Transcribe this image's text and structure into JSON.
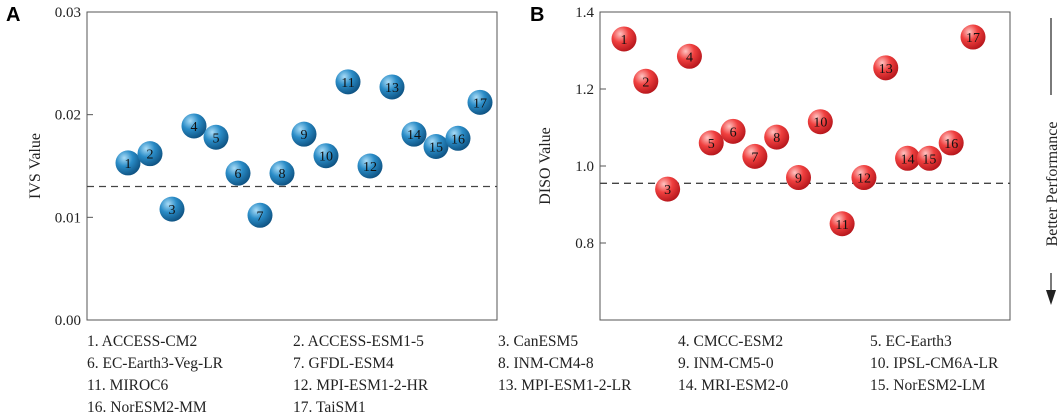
{
  "chart_data": [
    {
      "panel": "A",
      "type": "scatter",
      "ylabel": "IVS Value",
      "ylim": [
        0,
        0.03
      ],
      "yticks": [
        "0.00",
        "0.01",
        "0.02",
        "0.03"
      ],
      "reference_line": 0.013,
      "points": [
        {
          "label": "1",
          "x": 1,
          "y": 0.0153
        },
        {
          "label": "2",
          "x": 2,
          "y": 0.0162
        },
        {
          "label": "3",
          "x": 3,
          "y": 0.0108
        },
        {
          "label": "4",
          "x": 4,
          "y": 0.0189
        },
        {
          "label": "5",
          "x": 5,
          "y": 0.0178
        },
        {
          "label": "6",
          "x": 6,
          "y": 0.0143
        },
        {
          "label": "7",
          "x": 7,
          "y": 0.0102
        },
        {
          "label": "8",
          "x": 8,
          "y": 0.0143
        },
        {
          "label": "9",
          "x": 9,
          "y": 0.0181
        },
        {
          "label": "10",
          "x": 10,
          "y": 0.016
        },
        {
          "label": "11",
          "x": 11,
          "y": 0.0232
        },
        {
          "label": "12",
          "x": 12,
          "y": 0.015
        },
        {
          "label": "13",
          "x": 13,
          "y": 0.0227
        },
        {
          "label": "14",
          "x": 14,
          "y": 0.0181
        },
        {
          "label": "15",
          "x": 15,
          "y": 0.0169
        },
        {
          "label": "16",
          "x": 16,
          "y": 0.0177
        },
        {
          "label": "17",
          "x": 17,
          "y": 0.0212
        }
      ],
      "color": "#1a78b4"
    },
    {
      "panel": "B",
      "type": "scatter",
      "ylabel": "DISO Value",
      "ylim": [
        0.6,
        1.4
      ],
      "yticks": [
        "0.8",
        "1.0",
        "1.2",
        "1.4"
      ],
      "reference_line": 0.955,
      "arrow_label": "Better Performance",
      "points": [
        {
          "label": "1",
          "x": 1,
          "y": 1.33
        },
        {
          "label": "2",
          "x": 2,
          "y": 1.22
        },
        {
          "label": "3",
          "x": 3,
          "y": 0.94
        },
        {
          "label": "4",
          "x": 4,
          "y": 1.285
        },
        {
          "label": "5",
          "x": 5,
          "y": 1.06
        },
        {
          "label": "6",
          "x": 6,
          "y": 1.09
        },
        {
          "label": "7",
          "x": 7,
          "y": 1.025
        },
        {
          "label": "8",
          "x": 8,
          "y": 1.075
        },
        {
          "label": "9",
          "x": 9,
          "y": 0.97
        },
        {
          "label": "10",
          "x": 10,
          "y": 1.115
        },
        {
          "label": "11",
          "x": 11,
          "y": 0.85
        },
        {
          "label": "12",
          "x": 12,
          "y": 0.97
        },
        {
          "label": "13",
          "x": 13,
          "y": 1.255
        },
        {
          "label": "14",
          "x": 14,
          "y": 1.02
        },
        {
          "label": "15",
          "x": 15,
          "y": 1.02
        },
        {
          "label": "16",
          "x": 16,
          "y": 1.06
        },
        {
          "label": "17",
          "x": 17,
          "y": 1.335
        }
      ],
      "color": "#e8262a"
    }
  ],
  "legend": [
    "1. ACCESS-CM2",
    "2. ACCESS-ESM1-5",
    "3. CanESM5",
    "4. CMCC-ESM2",
    "5. EC-Earth3",
    "6. EC-Earth3-Veg-LR",
    "7. GFDL-ESM4",
    "8. INM-CM4-8",
    "9. INM-CM5-0",
    "10. IPSL-CM6A-LR",
    "11. MIROC6",
    "12. MPI-ESM1-2-HR",
    "13. MPI-ESM1-2-LR",
    "14. MRI-ESM2-0",
    "15. NorESM2-LM",
    "16. NorESM2-MM",
    "17. TaiSM1"
  ]
}
